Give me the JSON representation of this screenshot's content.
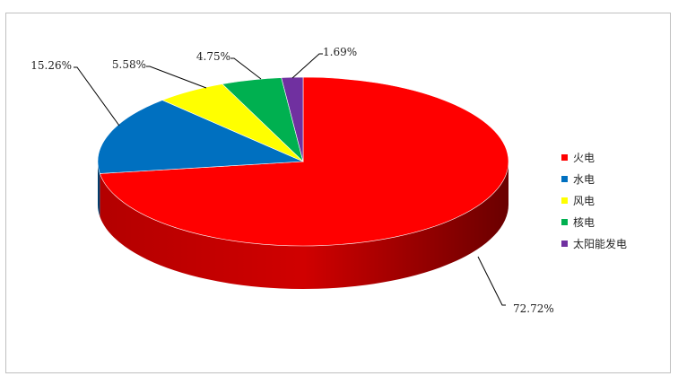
{
  "chart_data": {
    "type": "pie",
    "style": "3d",
    "legend_position": "right",
    "slices": [
      {
        "label": "火电",
        "value": 72.72,
        "value_label": "72.72%",
        "color": "#ff0000",
        "dark": "#8b0000"
      },
      {
        "label": "水电",
        "value": 15.26,
        "value_label": "15.26%",
        "color": "#0070c0",
        "dark": "#003d6b"
      },
      {
        "label": "风电",
        "value": 5.58,
        "value_label": "5.58%",
        "color": "#ffff00",
        "dark": "#9a9a00"
      },
      {
        "label": "核电",
        "value": 4.75,
        "value_label": "4.75%",
        "color": "#00b050",
        "dark": "#006b30"
      },
      {
        "label": "太阳能发电",
        "value": 1.69,
        "value_label": "1.69%",
        "color": "#7030a0",
        "dark": "#3e1a5a"
      }
    ]
  }
}
